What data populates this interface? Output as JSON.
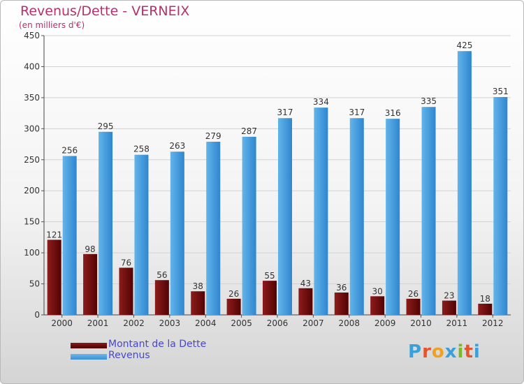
{
  "header": {
    "title": "Revenus/Dette - VERNEIX",
    "subtitle": "(en milliers d'€)"
  },
  "chart_data": {
    "type": "bar",
    "title": "Revenus/Dette - VERNEIX",
    "subtitle": "(en milliers d'€)",
    "categories": [
      "2000",
      "2001",
      "2002",
      "2003",
      "2004",
      "2005",
      "2006",
      "2007",
      "2008",
      "2009",
      "2010",
      "2011",
      "2012"
    ],
    "series": [
      {
        "name": "Montant de la Dette",
        "color": "#6e0b0b",
        "values": [
          121,
          98,
          76,
          56,
          38,
          26,
          55,
          43,
          36,
          30,
          26,
          23,
          18
        ]
      },
      {
        "name": "Revenus",
        "color": "#4aa3e3",
        "values": [
          256,
          295,
          258,
          263,
          279,
          287,
          317,
          334,
          317,
          316,
          335,
          425,
          351
        ]
      }
    ],
    "ylim": [
      0,
      450
    ],
    "yticks": [
      0,
      50,
      100,
      150,
      200,
      250,
      300,
      350,
      400,
      450
    ],
    "grid": true,
    "legend_position": "bottom-left"
  },
  "legend": {
    "items": [
      {
        "label": "Montant de la Dette",
        "color": "#6e0b0b"
      },
      {
        "label": "Revenus",
        "color": "#4aa3e3"
      }
    ]
  },
  "logo": {
    "text": "Proxiti",
    "letter_colors": [
      "#3aa0d8",
      "#e5552c",
      "#f0a11e",
      "#3aa0d8",
      "#7ab828",
      "#e5552c",
      "#3aa0d8"
    ]
  }
}
